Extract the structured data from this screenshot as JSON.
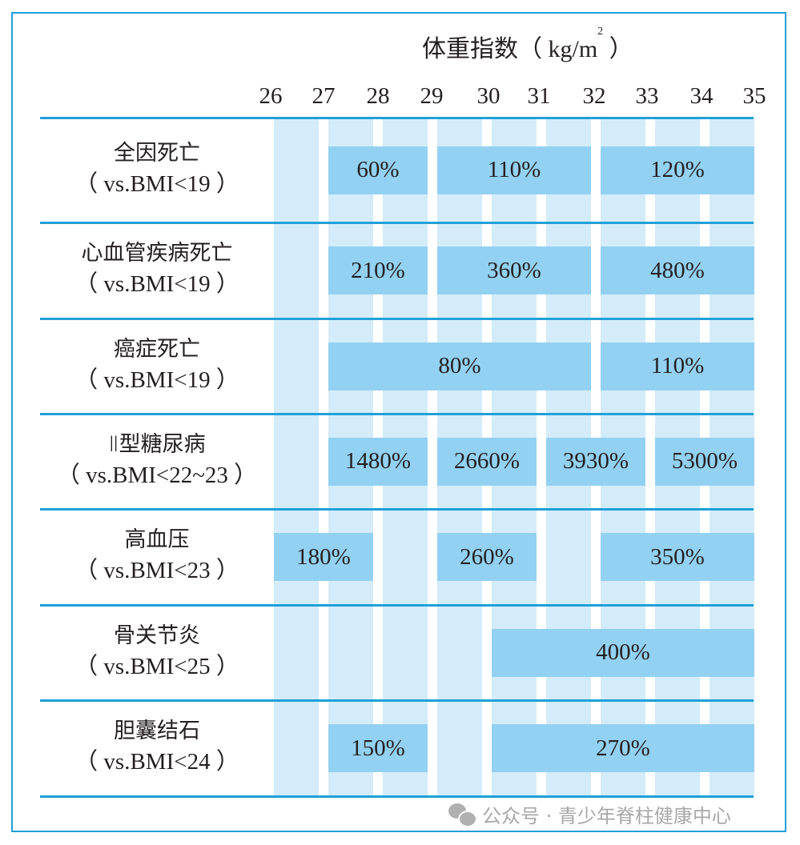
{
  "chart_data": {
    "type": "table",
    "title": "体重指数（kg/m²）",
    "xlabel": "体重指数（kg/m²）",
    "ylabel": "",
    "x_ticks": [
      "26",
      "27",
      "28",
      "29",
      "30",
      "31",
      "32",
      "33",
      "34",
      "35"
    ],
    "xlim": [
      26,
      35
    ],
    "rows": [
      {
        "name": "全因死亡",
        "reference": "（ vs.BMI<19 ）",
        "segments": [
          {
            "label": "60%",
            "from_bmi": 27,
            "to_bmi": 29,
            "value": 60
          },
          {
            "label": "110%",
            "from_bmi": 29,
            "to_bmi": 32,
            "value": 110
          },
          {
            "label": "120%",
            "from_bmi": 32,
            "to_bmi": 35,
            "value": 120
          }
        ]
      },
      {
        "name": "心血管疾病死亡",
        "reference": "（ vs.BMI<19 ）",
        "segments": [
          {
            "label": "210%",
            "from_bmi": 27,
            "to_bmi": 29,
            "value": 210
          },
          {
            "label": "360%",
            "from_bmi": 29,
            "to_bmi": 32,
            "value": 360
          },
          {
            "label": "480%",
            "from_bmi": 32,
            "to_bmi": 35,
            "value": 480
          }
        ]
      },
      {
        "name": "癌症死亡",
        "reference": "（ vs.BMI<19 ）",
        "segments": [
          {
            "label": "80%",
            "from_bmi": 27,
            "to_bmi": 32,
            "value": 80
          },
          {
            "label": "110%",
            "from_bmi": 32,
            "to_bmi": 35,
            "value": 110
          }
        ]
      },
      {
        "name": "Ⅱ型糖尿病",
        "reference": "（ vs.BMI<22~23 ）",
        "segments": [
          {
            "label": "1480%",
            "from_bmi": 27,
            "to_bmi": 29,
            "value": 1480
          },
          {
            "label": "2660%",
            "from_bmi": 29,
            "to_bmi": 31,
            "value": 2660
          },
          {
            "label": "3930%",
            "from_bmi": 31,
            "to_bmi": 33,
            "value": 3930
          },
          {
            "label": "5300%",
            "from_bmi": 33,
            "to_bmi": 35,
            "value": 5300
          }
        ]
      },
      {
        "name": "高血压",
        "reference": "（ vs.BMI<23 ）",
        "segments": [
          {
            "label": "180%",
            "from_bmi": 26,
            "to_bmi": 28,
            "value": 180
          },
          {
            "label": "260%",
            "from_bmi": 29,
            "to_bmi": 31,
            "value": 260
          },
          {
            "label": "350%",
            "from_bmi": 32,
            "to_bmi": 35,
            "value": 350
          }
        ]
      },
      {
        "name": "骨关节炎",
        "reference": "（ vs.BMI<25 ）",
        "segments": [
          {
            "label": "400%",
            "from_bmi": 30,
            "to_bmi": 35,
            "value": 400
          }
        ]
      },
      {
        "name": "胆囊结石",
        "reference": "（ vs.BMI<24 ）",
        "segments": [
          {
            "label": "150%",
            "from_bmi": 27,
            "to_bmi": 29,
            "value": 150
          },
          {
            "label": "270%",
            "from_bmi": 30,
            "to_bmi": 35,
            "value": 270
          }
        ]
      }
    ],
    "grid": true,
    "legend": null
  },
  "header": {
    "axis_title_main": "体重指数（ kg/m",
    "axis_title_sup": "2",
    "axis_title_end": " ）"
  },
  "colors": {
    "line": "#1fa0d8",
    "stripe": "#d4ecf9",
    "bar": "#93d1f2",
    "text": "#231f20"
  },
  "watermark": {
    "icon": "wechat-icon",
    "text": "公众号 · 青少年脊柱健康中心"
  }
}
